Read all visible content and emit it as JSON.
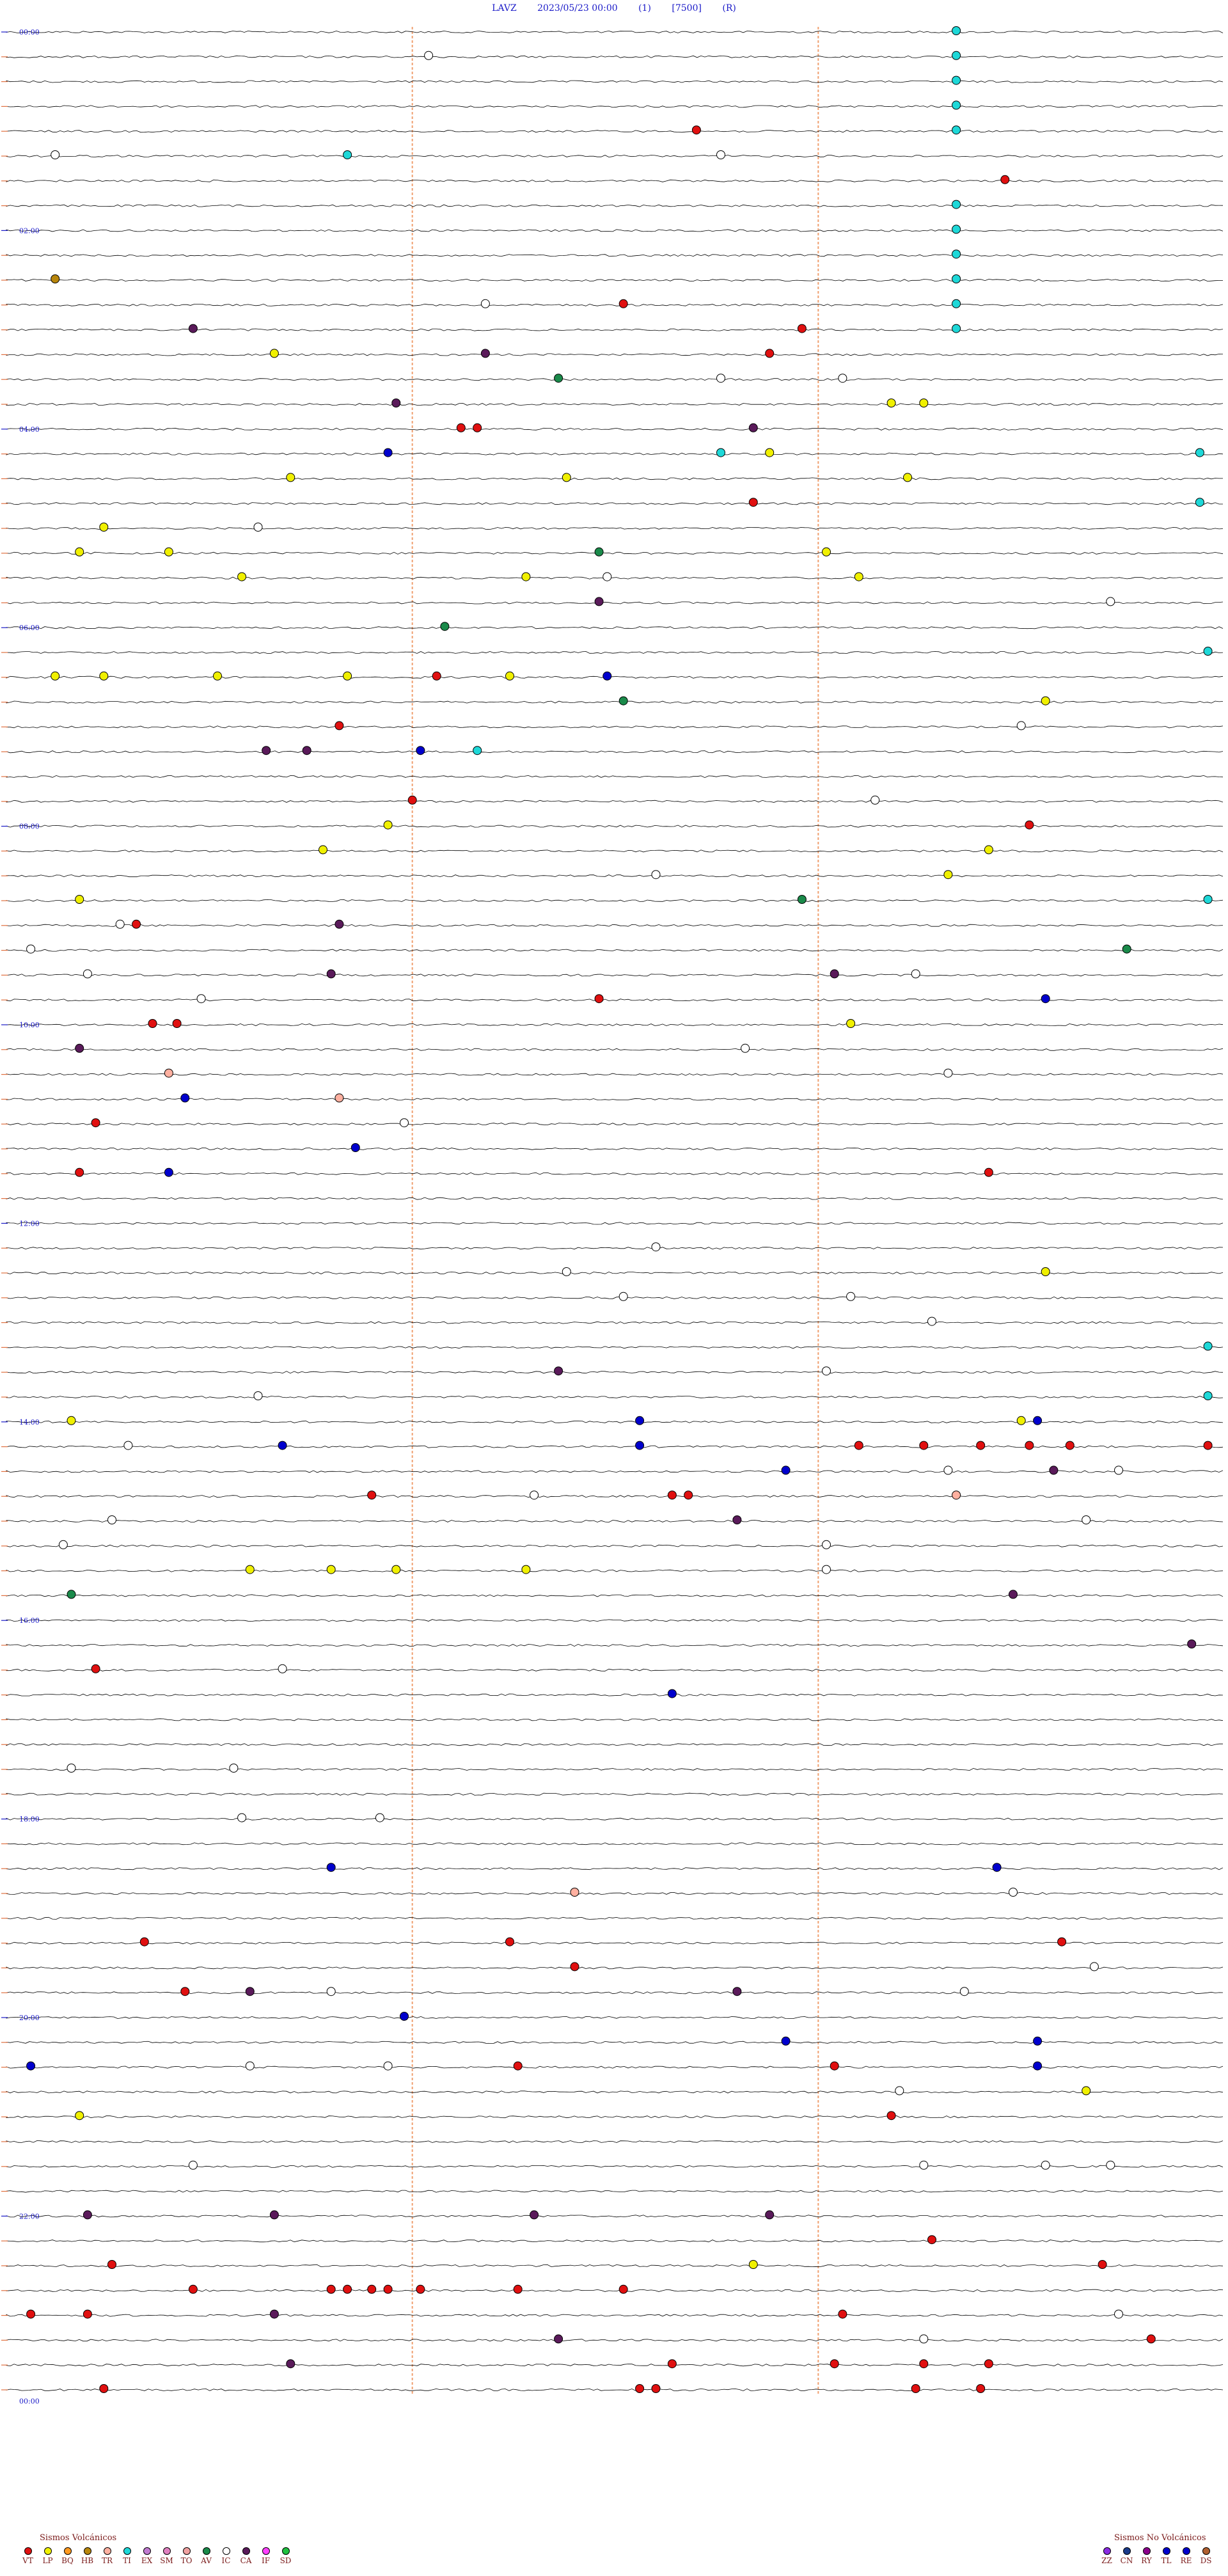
{
  "header": {
    "station": "LAVZ",
    "datetime": "2023/05/23 00:00",
    "channel": "(1)",
    "scale": "[7500]",
    "flag": "(R)"
  },
  "chart_data": {
    "type": "scatter",
    "title": "LAVZ 2023/05/23 00:00 (1) [7500] (R)",
    "row_minutes": 15,
    "rows": 96,
    "hour_labels": [
      "00:00",
      "02:00",
      "04:00",
      "06:00",
      "08:00",
      "10:00",
      "12:00",
      "14:00",
      "16:00",
      "18:00",
      "20:00",
      "22:00",
      "00:00"
    ],
    "colors": {
      "VT": "#e01010",
      "LP": "#f0f000",
      "BQ": "#ff9a20",
      "HB": "#b8860b",
      "TR": "#ffb0a0",
      "TI": "#1ed8d8",
      "EX": "#c07ad0",
      "SM": "#e080c0",
      "TO": "#f0a0a0",
      "AV": "#1a8a4a",
      "IC": "#ffffff",
      "CA": "#5a1a5a",
      "IF": "#ff40ff",
      "SD": "#20c040",
      "ZZ": "#8a2be2",
      "CN": "#1a3a8a",
      "RY": "#8b008b",
      "TL": "#0000cd",
      "RE": "#0000cd",
      "DS": "#b06030",
      "trace": "#000000",
      "vline": "#f0a070",
      "hourmark": "#1a1ac8"
    },
    "legend_volcanic": {
      "title": "Sismos Volcánicos",
      "codes": [
        "VT",
        "LP",
        "BQ",
        "HB",
        "TR",
        "TI",
        "EX",
        "SM",
        "TO",
        "AV",
        "IC",
        "CA",
        "IF",
        "SD"
      ]
    },
    "legend_nonvolcanic": {
      "title": "Sismos No Volcánicos",
      "codes": [
        "ZZ",
        "CN",
        "RY",
        "TL",
        "RE",
        "DS"
      ]
    },
    "events": [
      {
        "row": 0,
        "minute": 11.7,
        "type": "TI"
      },
      {
        "row": 1,
        "minute": 5.2,
        "type": "IC"
      },
      {
        "row": 1,
        "minute": 11.7,
        "type": "TI"
      },
      {
        "row": 2,
        "minute": 11.7,
        "type": "TI"
      },
      {
        "row": 3,
        "minute": 11.7,
        "type": "TI"
      },
      {
        "row": 4,
        "minute": 8.5,
        "type": "VT"
      },
      {
        "row": 4,
        "minute": 11.7,
        "type": "TI"
      },
      {
        "row": 5,
        "minute": 0.6,
        "type": "IC"
      },
      {
        "row": 5,
        "minute": 4.2,
        "type": "TI"
      },
      {
        "row": 5,
        "minute": 8.8,
        "type": "IC"
      },
      {
        "row": 6,
        "minute": 12.3,
        "type": "VT"
      },
      {
        "row": 7,
        "minute": 11.7,
        "type": "TI"
      },
      {
        "row": 8,
        "minute": 11.7,
        "type": "TI"
      },
      {
        "row": 9,
        "minute": 11.7,
        "type": "TI"
      },
      {
        "row": 10,
        "minute": 0.6,
        "type": "HB"
      },
      {
        "row": 10,
        "minute": 11.7,
        "type": "TI"
      },
      {
        "row": 11,
        "minute": 5.9,
        "type": "IC"
      },
      {
        "row": 11,
        "minute": 7.6,
        "type": "VT"
      },
      {
        "row": 11,
        "minute": 11.7,
        "type": "TI"
      },
      {
        "row": 12,
        "minute": 2.3,
        "type": "CA"
      },
      {
        "row": 12,
        "minute": 9.8,
        "type": "VT"
      },
      {
        "row": 12,
        "minute": 11.7,
        "type": "TI"
      },
      {
        "row": 13,
        "minute": 3.3,
        "type": "LP"
      },
      {
        "row": 13,
        "minute": 5.9,
        "type": "CA"
      },
      {
        "row": 13,
        "minute": 9.4,
        "type": "VT"
      },
      {
        "row": 14,
        "minute": 6.8,
        "type": "AV"
      },
      {
        "row": 14,
        "minute": 8.8,
        "type": "IC"
      },
      {
        "row": 14,
        "minute": 10.3,
        "type": "IC"
      },
      {
        "row": 15,
        "minute": 4.8,
        "type": "CA"
      },
      {
        "row": 15,
        "minute": 10.9,
        "type": "LP"
      },
      {
        "row": 15,
        "minute": 11.3,
        "type": "LP"
      },
      {
        "row": 16,
        "minute": 5.6,
        "type": "VT"
      },
      {
        "row": 16,
        "minute": 5.8,
        "type": "VT"
      },
      {
        "row": 16,
        "minute": 9.2,
        "type": "CA"
      },
      {
        "row": 17,
        "minute": 4.7,
        "type": "TL"
      },
      {
        "row": 17,
        "minute": 8.8,
        "type": "TI"
      },
      {
        "row": 17,
        "minute": 9.4,
        "type": "LP"
      },
      {
        "row": 17,
        "minute": 14.7,
        "type": "TI"
      },
      {
        "row": 18,
        "minute": 3.5,
        "type": "LP"
      },
      {
        "row": 18,
        "minute": 6.9,
        "type": "LP"
      },
      {
        "row": 18,
        "minute": 11.1,
        "type": "LP"
      },
      {
        "row": 19,
        "minute": 9.2,
        "type": "VT"
      },
      {
        "row": 19,
        "minute": 14.7,
        "type": "TI"
      },
      {
        "row": 20,
        "minute": 1.2,
        "type": "LP"
      },
      {
        "row": 20,
        "minute": 3.1,
        "type": "IC"
      },
      {
        "row": 21,
        "minute": 0.9,
        "type": "LP"
      },
      {
        "row": 21,
        "minute": 2.0,
        "type": "LP"
      },
      {
        "row": 21,
        "minute": 7.3,
        "type": "AV"
      },
      {
        "row": 21,
        "minute": 10.1,
        "type": "LP"
      },
      {
        "row": 22,
        "minute": 2.9,
        "type": "LP"
      },
      {
        "row": 22,
        "minute": 6.4,
        "type": "LP"
      },
      {
        "row": 22,
        "minute": 7.4,
        "type": "IC"
      },
      {
        "row": 22,
        "minute": 10.5,
        "type": "LP"
      },
      {
        "row": 23,
        "minute": 7.3,
        "type": "CA"
      },
      {
        "row": 23,
        "minute": 13.6,
        "type": "IC"
      },
      {
        "row": 24,
        "minute": 5.4,
        "type": "AV"
      },
      {
        "row": 25,
        "minute": 14.8,
        "type": "TI"
      },
      {
        "row": 26,
        "minute": 0.6,
        "type": "LP"
      },
      {
        "row": 26,
        "minute": 1.2,
        "type": "LP"
      },
      {
        "row": 26,
        "minute": 2.6,
        "type": "LP"
      },
      {
        "row": 26,
        "minute": 4.2,
        "type": "LP"
      },
      {
        "row": 26,
        "minute": 5.3,
        "type": "VT"
      },
      {
        "row": 26,
        "minute": 6.2,
        "type": "LP"
      },
      {
        "row": 26,
        "minute": 7.4,
        "type": "TL"
      },
      {
        "row": 27,
        "minute": 7.6,
        "type": "AV"
      },
      {
        "row": 27,
        "minute": 12.8,
        "type": "LP"
      },
      {
        "row": 28,
        "minute": 4.1,
        "type": "VT"
      },
      {
        "row": 28,
        "minute": 12.5,
        "type": "IC"
      },
      {
        "row": 29,
        "minute": 3.2,
        "type": "CA"
      },
      {
        "row": 29,
        "minute": 3.7,
        "type": "CA"
      },
      {
        "row": 29,
        "minute": 5.1,
        "type": "TL"
      },
      {
        "row": 29,
        "minute": 5.8,
        "type": "TI"
      },
      {
        "row": 31,
        "minute": 5.0,
        "type": "VT"
      },
      {
        "row": 31,
        "minute": 10.7,
        "type": "IC"
      },
      {
        "row": 32,
        "minute": 4.7,
        "type": "LP"
      },
      {
        "row": 32,
        "minute": 12.6,
        "type": "VT"
      },
      {
        "row": 33,
        "minute": 3.9,
        "type": "LP"
      },
      {
        "row": 33,
        "minute": 12.1,
        "type": "LP"
      },
      {
        "row": 34,
        "minute": 8.0,
        "type": "IC"
      },
      {
        "row": 34,
        "minute": 11.6,
        "type": "LP"
      },
      {
        "row": 35,
        "minute": 0.9,
        "type": "LP"
      },
      {
        "row": 35,
        "minute": 9.8,
        "type": "AV"
      },
      {
        "row": 35,
        "minute": 14.8,
        "type": "TI"
      },
      {
        "row": 36,
        "minute": 1.4,
        "type": "IC"
      },
      {
        "row": 36,
        "minute": 1.6,
        "type": "VT"
      },
      {
        "row": 36,
        "minute": 4.1,
        "type": "CA"
      },
      {
        "row": 37,
        "minute": 0.3,
        "type": "IC"
      },
      {
        "row": 37,
        "minute": 13.8,
        "type": "AV"
      },
      {
        "row": 38,
        "minute": 1.0,
        "type": "IC"
      },
      {
        "row": 38,
        "minute": 4.0,
        "type": "CA"
      },
      {
        "row": 38,
        "minute": 10.2,
        "type": "CA"
      },
      {
        "row": 38,
        "minute": 11.2,
        "type": "IC"
      },
      {
        "row": 39,
        "minute": 2.4,
        "type": "IC"
      },
      {
        "row": 39,
        "minute": 7.3,
        "type": "VT"
      },
      {
        "row": 39,
        "minute": 12.8,
        "type": "TL"
      },
      {
        "row": 40,
        "minute": 1.8,
        "type": "VT"
      },
      {
        "row": 40,
        "minute": 2.1,
        "type": "VT"
      },
      {
        "row": 40,
        "minute": 10.4,
        "type": "LP"
      },
      {
        "row": 41,
        "minute": 0.9,
        "type": "CA"
      },
      {
        "row": 41,
        "minute": 9.1,
        "type": "IC"
      },
      {
        "row": 42,
        "minute": 2.0,
        "type": "TR"
      },
      {
        "row": 42,
        "minute": 11.6,
        "type": "IC"
      },
      {
        "row": 43,
        "minute": 2.2,
        "type": "TL"
      },
      {
        "row": 43,
        "minute": 4.1,
        "type": "TR"
      },
      {
        "row": 44,
        "minute": 1.1,
        "type": "VT"
      },
      {
        "row": 44,
        "minute": 4.9,
        "type": "IC"
      },
      {
        "row": 45,
        "minute": 4.3,
        "type": "TL"
      },
      {
        "row": 46,
        "minute": 0.9,
        "type": "VT"
      },
      {
        "row": 46,
        "minute": 2.0,
        "type": "TL"
      },
      {
        "row": 46,
        "minute": 12.1,
        "type": "VT"
      },
      {
        "row": 49,
        "minute": 8.0,
        "type": "IC"
      },
      {
        "row": 50,
        "minute": 6.9,
        "type": "IC"
      },
      {
        "row": 50,
        "minute": 12.8,
        "type": "LP"
      },
      {
        "row": 51,
        "minute": 7.6,
        "type": "IC"
      },
      {
        "row": 51,
        "minute": 10.4,
        "type": "IC"
      },
      {
        "row": 52,
        "minute": 11.4,
        "type": "IC"
      },
      {
        "row": 53,
        "minute": 14.8,
        "type": "TI"
      },
      {
        "row": 54,
        "minute": 6.8,
        "type": "CA"
      },
      {
        "row": 54,
        "minute": 10.1,
        "type": "IC"
      },
      {
        "row": 55,
        "minute": 3.1,
        "type": "IC"
      },
      {
        "row": 55,
        "minute": 14.8,
        "type": "TI"
      },
      {
        "row": 56,
        "minute": 0.8,
        "type": "LP"
      },
      {
        "row": 56,
        "minute": 7.8,
        "type": "TL"
      },
      {
        "row": 56,
        "minute": 12.5,
        "type": "LP"
      },
      {
        "row": 56,
        "minute": 12.7,
        "type": "TL"
      },
      {
        "row": 57,
        "minute": 1.5,
        "type": "IC"
      },
      {
        "row": 57,
        "minute": 3.4,
        "type": "TL"
      },
      {
        "row": 57,
        "minute": 7.8,
        "type": "TL"
      },
      {
        "row": 57,
        "minute": 10.5,
        "type": "VT"
      },
      {
        "row": 57,
        "minute": 11.3,
        "type": "VT"
      },
      {
        "row": 57,
        "minute": 12.0,
        "type": "VT"
      },
      {
        "row": 57,
        "minute": 12.6,
        "type": "VT"
      },
      {
        "row": 57,
        "minute": 13.1,
        "type": "VT"
      },
      {
        "row": 57,
        "minute": 14.8,
        "type": "VT"
      },
      {
        "row": 58,
        "minute": 9.6,
        "type": "TL"
      },
      {
        "row": 58,
        "minute": 11.6,
        "type": "IC"
      },
      {
        "row": 58,
        "minute": 12.9,
        "type": "CA"
      },
      {
        "row": 58,
        "minute": 13.7,
        "type": "IC"
      },
      {
        "row": 59,
        "minute": 4.5,
        "type": "VT"
      },
      {
        "row": 59,
        "minute": 6.5,
        "type": "IC"
      },
      {
        "row": 59,
        "minute": 8.2,
        "type": "VT"
      },
      {
        "row": 59,
        "minute": 8.4,
        "type": "VT"
      },
      {
        "row": 59,
        "minute": 11.7,
        "type": "TR"
      },
      {
        "row": 60,
        "minute": 1.3,
        "type": "IC"
      },
      {
        "row": 60,
        "minute": 9.0,
        "type": "CA"
      },
      {
        "row": 60,
        "minute": 13.3,
        "type": "IC"
      },
      {
        "row": 61,
        "minute": 0.7,
        "type": "IC"
      },
      {
        "row": 61,
        "minute": 10.1,
        "type": "IC"
      },
      {
        "row": 62,
        "minute": 3.0,
        "type": "LP"
      },
      {
        "row": 62,
        "minute": 4.0,
        "type": "LP"
      },
      {
        "row": 62,
        "minute": 4.8,
        "type": "LP"
      },
      {
        "row": 62,
        "minute": 6.4,
        "type": "LP"
      },
      {
        "row": 62,
        "minute": 10.1,
        "type": "IC"
      },
      {
        "row": 63,
        "minute": 0.8,
        "type": "AV"
      },
      {
        "row": 63,
        "minute": 12.4,
        "type": "CA"
      },
      {
        "row": 65,
        "minute": 14.6,
        "type": "CA"
      },
      {
        "row": 66,
        "minute": 1.1,
        "type": "VT"
      },
      {
        "row": 66,
        "minute": 3.4,
        "type": "IC"
      },
      {
        "row": 67,
        "minute": 8.2,
        "type": "TL"
      },
      {
        "row": 70,
        "minute": 0.8,
        "type": "IC"
      },
      {
        "row": 70,
        "minute": 2.8,
        "type": "IC"
      },
      {
        "row": 72,
        "minute": 4.6,
        "type": "IC"
      },
      {
        "row": 72,
        "minute": 2.9,
        "type": "IC"
      },
      {
        "row": 74,
        "minute": 4.0,
        "type": "TL"
      },
      {
        "row": 74,
        "minute": 12.2,
        "type": "TL"
      },
      {
        "row": 75,
        "minute": 7.0,
        "type": "TR"
      },
      {
        "row": 75,
        "minute": 12.4,
        "type": "IC"
      },
      {
        "row": 77,
        "minute": 1.7,
        "type": "VT"
      },
      {
        "row": 77,
        "minute": 6.2,
        "type": "VT"
      },
      {
        "row": 77,
        "minute": 13.0,
        "type": "VT"
      },
      {
        "row": 78,
        "minute": 7.0,
        "type": "VT"
      },
      {
        "row": 78,
        "minute": 13.4,
        "type": "IC"
      },
      {
        "row": 79,
        "minute": 2.2,
        "type": "VT"
      },
      {
        "row": 79,
        "minute": 3.0,
        "type": "CA"
      },
      {
        "row": 79,
        "minute": 4.0,
        "type": "IC"
      },
      {
        "row": 79,
        "minute": 9.0,
        "type": "CA"
      },
      {
        "row": 79,
        "minute": 11.8,
        "type": "IC"
      },
      {
        "row": 80,
        "minute": 4.9,
        "type": "TL"
      },
      {
        "row": 81,
        "minute": 9.6,
        "type": "TL"
      },
      {
        "row": 81,
        "minute": 12.7,
        "type": "TL"
      },
      {
        "row": 82,
        "minute": 0.3,
        "type": "TL"
      },
      {
        "row": 82,
        "minute": 3.0,
        "type": "IC"
      },
      {
        "row": 82,
        "minute": 4.7,
        "type": "IC"
      },
      {
        "row": 82,
        "minute": 6.3,
        "type": "VT"
      },
      {
        "row": 82,
        "minute": 10.2,
        "type": "VT"
      },
      {
        "row": 82,
        "minute": 12.7,
        "type": "TL"
      },
      {
        "row": 83,
        "minute": 11.0,
        "type": "IC"
      },
      {
        "row": 83,
        "minute": 13.3,
        "type": "LP"
      },
      {
        "row": 84,
        "minute": 0.9,
        "type": "LP"
      },
      {
        "row": 84,
        "minute": 10.9,
        "type": "VT"
      },
      {
        "row": 86,
        "minute": 2.3,
        "type": "IC"
      },
      {
        "row": 86,
        "minute": 11.3,
        "type": "IC"
      },
      {
        "row": 86,
        "minute": 12.8,
        "type": "IC"
      },
      {
        "row": 86,
        "minute": 13.6,
        "type": "IC"
      },
      {
        "row": 88,
        "minute": 1.0,
        "type": "CA"
      },
      {
        "row": 88,
        "minute": 3.3,
        "type": "CA"
      },
      {
        "row": 88,
        "minute": 6.5,
        "type": "CA"
      },
      {
        "row": 88,
        "minute": 9.4,
        "type": "CA"
      },
      {
        "row": 89,
        "minute": 11.4,
        "type": "VT"
      },
      {
        "row": 90,
        "minute": 1.3,
        "type": "VT"
      },
      {
        "row": 90,
        "minute": 9.2,
        "type": "LP"
      },
      {
        "row": 90,
        "minute": 13.5,
        "type": "VT"
      },
      {
        "row": 91,
        "minute": 2.3,
        "type": "VT"
      },
      {
        "row": 91,
        "minute": 4.0,
        "type": "VT"
      },
      {
        "row": 91,
        "minute": 4.2,
        "type": "VT"
      },
      {
        "row": 91,
        "minute": 4.5,
        "type": "VT"
      },
      {
        "row": 91,
        "minute": 4.7,
        "type": "VT"
      },
      {
        "row": 91,
        "minute": 5.1,
        "type": "VT"
      },
      {
        "row": 91,
        "minute": 6.3,
        "type": "VT"
      },
      {
        "row": 91,
        "minute": 7.6,
        "type": "VT"
      },
      {
        "row": 92,
        "minute": 0.3,
        "type": "VT"
      },
      {
        "row": 92,
        "minute": 1.0,
        "type": "VT"
      },
      {
        "row": 92,
        "minute": 3.3,
        "type": "CA"
      },
      {
        "row": 92,
        "minute": 10.3,
        "type": "VT"
      },
      {
        "row": 92,
        "minute": 13.7,
        "type": "IC"
      },
      {
        "row": 93,
        "minute": 6.8,
        "type": "CA"
      },
      {
        "row": 93,
        "minute": 11.3,
        "type": "IC"
      },
      {
        "row": 93,
        "minute": 14.1,
        "type": "VT"
      },
      {
        "row": 94,
        "minute": 3.5,
        "type": "CA"
      },
      {
        "row": 94,
        "minute": 8.2,
        "type": "VT"
      },
      {
        "row": 94,
        "minute": 10.2,
        "type": "VT"
      },
      {
        "row": 94,
        "minute": 11.3,
        "type": "VT"
      },
      {
        "row": 94,
        "minute": 12.1,
        "type": "VT"
      },
      {
        "row": 95,
        "minute": 1.2,
        "type": "VT"
      },
      {
        "row": 95,
        "minute": 7.8,
        "type": "VT"
      },
      {
        "row": 95,
        "minute": 8.0,
        "type": "VT"
      },
      {
        "row": 95,
        "minute": 11.2,
        "type": "VT"
      },
      {
        "row": 95,
        "minute": 12.0,
        "type": "VT"
      }
    ]
  }
}
